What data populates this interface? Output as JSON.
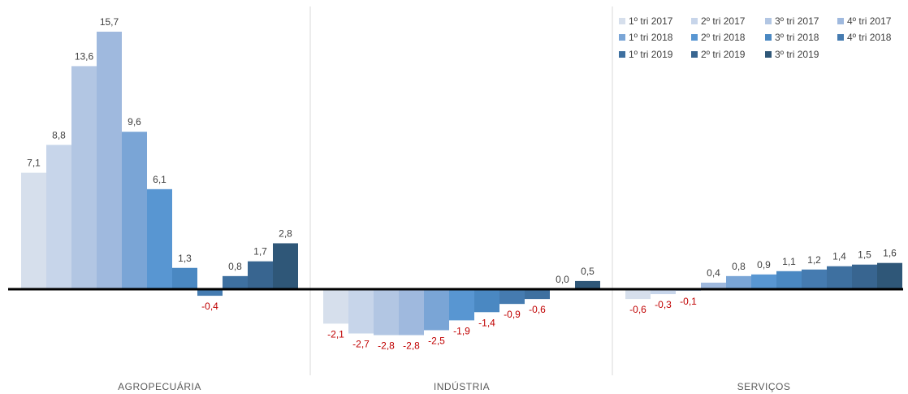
{
  "chart_data": {
    "type": "bar",
    "categories": [
      "AGROPECUÁRIA",
      "INDÚSTRIA",
      "SERVIÇOS"
    ],
    "series": [
      {
        "name": "1º tri 2017",
        "color": "#d6dfec",
        "values": [
          7.1,
          -2.1,
          -0.6
        ]
      },
      {
        "name": "2º tri 2017",
        "color": "#c7d5ea",
        "values": [
          8.8,
          -2.7,
          -0.3
        ]
      },
      {
        "name": "3º tri 2017",
        "color": "#b2c6e3",
        "values": [
          13.6,
          -2.8,
          -0.1
        ]
      },
      {
        "name": "4º tri 2017",
        "color": "#9fb9de",
        "values": [
          15.7,
          -2.8,
          0.4
        ]
      },
      {
        "name": "1º tri 2018",
        "color": "#7aa5d6",
        "values": [
          9.6,
          -2.5,
          0.8
        ]
      },
      {
        "name": "2º tri 2018",
        "color": "#5896d2",
        "values": [
          6.1,
          -1.9,
          0.9
        ]
      },
      {
        "name": "3º tri 2018",
        "color": "#4a88c2",
        "values": [
          1.3,
          -1.4,
          1.1
        ]
      },
      {
        "name": "4º tri 2018",
        "color": "#457bb0",
        "values": [
          -0.4,
          -0.9,
          1.2
        ]
      },
      {
        "name": "1º tri 2019",
        "color": "#3e70a0",
        "values": [
          0.8,
          -0.6,
          1.4
        ]
      },
      {
        "name": "2º tri 2019",
        "color": "#386590",
        "values": [
          1.7,
          0.0,
          1.5
        ]
      },
      {
        "name": "3º tri 2019",
        "color": "#2f5778",
        "values": [
          2.8,
          0.5,
          1.6
        ]
      }
    ],
    "value_labels": [
      [
        "7,1",
        "-2,1",
        "-0,6"
      ],
      [
        "8,8",
        "-2,7",
        "-0,3"
      ],
      [
        "13,6",
        "-2,8",
        "-0,1"
      ],
      [
        "15,7",
        "-2,8",
        "0,4"
      ],
      [
        "9,6",
        "-2,5",
        "0,8"
      ],
      [
        "6,1",
        "-1,9",
        "0,9"
      ],
      [
        "1,3",
        "-1,4",
        "1,1"
      ],
      [
        "-0,4",
        "-0,9",
        "1,2"
      ],
      [
        "0,8",
        "-0,6",
        "1,4"
      ],
      [
        "1,7",
        "0,0",
        "1,5"
      ],
      [
        "2,8",
        "0,5",
        "1,6"
      ]
    ],
    "ylim": [
      -3.5,
      16.2
    ],
    "grid": false,
    "legend_position": "top-right",
    "negative_label_color": "#c00000",
    "zero_line": true
  }
}
